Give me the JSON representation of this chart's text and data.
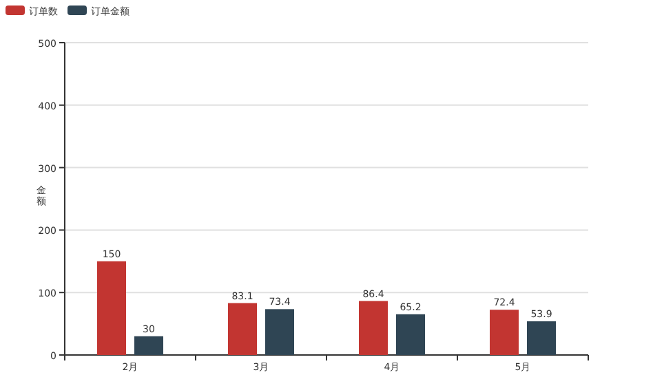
{
  "chart_data": {
    "type": "bar",
    "ylabel": "金额",
    "categories": [
      "2月",
      "3月",
      "4月",
      "5月"
    ],
    "series": [
      {
        "name": "订单数",
        "color": "#c23531",
        "values": [
          150,
          83.1,
          86.4,
          72.4
        ]
      },
      {
        "name": "订单金额",
        "color": "#2f4554",
        "values": [
          30,
          73.4,
          65.2,
          53.9
        ]
      }
    ],
    "ylim": [
      0,
      500
    ],
    "yticks": [
      0,
      100,
      200,
      300,
      400,
      500
    ],
    "grid": "y",
    "legend": "top left",
    "data_labels": true
  }
}
